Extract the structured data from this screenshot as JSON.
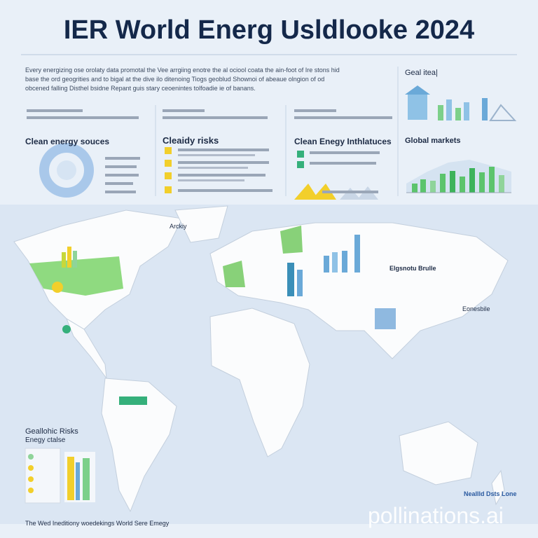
{
  "header": {
    "title": "IER World Energ Usldlooke  2024",
    "intro": [
      "Every energizing ose orolaty data promotal the Vee arrgiing enotre the al ociool coata the ain-foot of Ire stons hid",
      "base the ord geogrities and to bigal at the dive ilo ditenoing Tiogs geoblud Shownoi of abeaue olngion of od",
      "obcened falling Disthel bsidne Repant guis stary ceoenintes tolfoadie ie of banans."
    ]
  },
  "sections": [
    {
      "title": "Clean energy souces"
    },
    {
      "title": "Cleaidy risks"
    },
    {
      "title": "Clean Enegy Inthlatuces"
    },
    {
      "title": "Global markets"
    }
  ],
  "side": {
    "title": "Geal itea|"
  },
  "map": {
    "labels": [
      "Arckiy",
      "Elgsnotu Brulle",
      "Eonesbile"
    ]
  },
  "risks": {
    "title": "Geallohic Risks",
    "subtitle": "Enegy ctalse"
  },
  "footer": "The Wed Ineditiony woedekings World Sere Emegy",
  "corner": "Neallld Dsts Lone",
  "watermark": "pollinations.ai"
}
